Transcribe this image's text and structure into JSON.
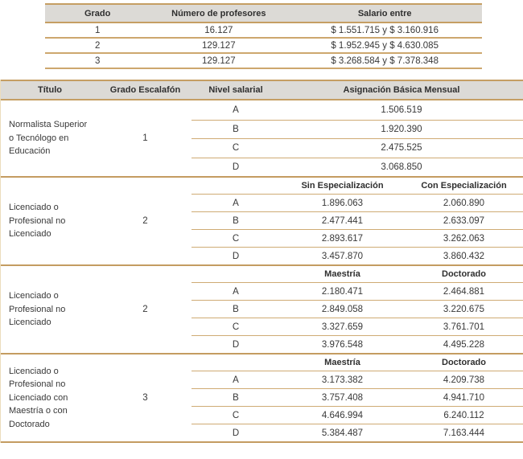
{
  "colors": {
    "rule_line": "#c59e63",
    "partial_line": "#cfab74",
    "header_bg": "#dcdad6",
    "text": "#383838"
  },
  "top_table": {
    "headers": [
      "Grado",
      "Número de profesores",
      "Salario entre"
    ],
    "rows": [
      [
        "1",
        "16.127",
        "$ 1.551.715 y $ 3.160.916"
      ],
      [
        "2",
        "129.127",
        "$ 1.952.945 y $ 4.630.085"
      ],
      [
        "3",
        "129.127",
        "$ 3.268.584 y $ 7.378.348"
      ]
    ]
  },
  "salary_table": {
    "headers": [
      "Título",
      "Grado Escalafón",
      "Nivel salarial",
      "Asignación Básica Mensual"
    ],
    "groups": [
      {
        "titulo": "Normalista Superior\no Tecnólogo en\nEducación",
        "grado": "1",
        "rows": [
          [
            "A",
            "1.506.519"
          ],
          [
            "B",
            "1.920.390"
          ],
          [
            "C",
            "2.475.525"
          ],
          [
            "D",
            "3.068.850"
          ]
        ]
      },
      {
        "titulo": "Licenciado o\nProfesional no\nLicenciado",
        "grado": "2",
        "subheaders": [
          "Sin Especialización",
          "Con Especialización"
        ],
        "rows": [
          [
            "A",
            "1.896.063",
            "2.060.890"
          ],
          [
            "B",
            "2.477.441",
            "2.633.097"
          ],
          [
            "C",
            "2.893.617",
            "3.262.063"
          ],
          [
            "D",
            "3.457.870",
            "3.860.432"
          ]
        ]
      },
      {
        "titulo": "Licenciado o\nProfesional no\nLicenciado",
        "grado": "2",
        "subheaders": [
          "Maestría",
          "Doctorado"
        ],
        "rows": [
          [
            "A",
            "2.180.471",
            "2.464.881"
          ],
          [
            "B",
            "2.849.058",
            "3.220.675"
          ],
          [
            "C",
            "3.327.659",
            "3.761.701"
          ],
          [
            "D",
            "3.976.548",
            "4.495.228"
          ]
        ]
      },
      {
        "titulo": "Licenciado o\nProfesional no\nLicenciado con\nMaestría o con\nDoctorado",
        "grado": "3",
        "subheaders": [
          "Maestría",
          "Doctorado"
        ],
        "rows": [
          [
            "A",
            "3.173.382",
            "4.209.738"
          ],
          [
            "B",
            "3.757.408",
            "4.941.710"
          ],
          [
            "C",
            "4.646.994",
            "6.240.112"
          ],
          [
            "D",
            "5.384.487",
            "7.163.444"
          ]
        ]
      }
    ]
  }
}
